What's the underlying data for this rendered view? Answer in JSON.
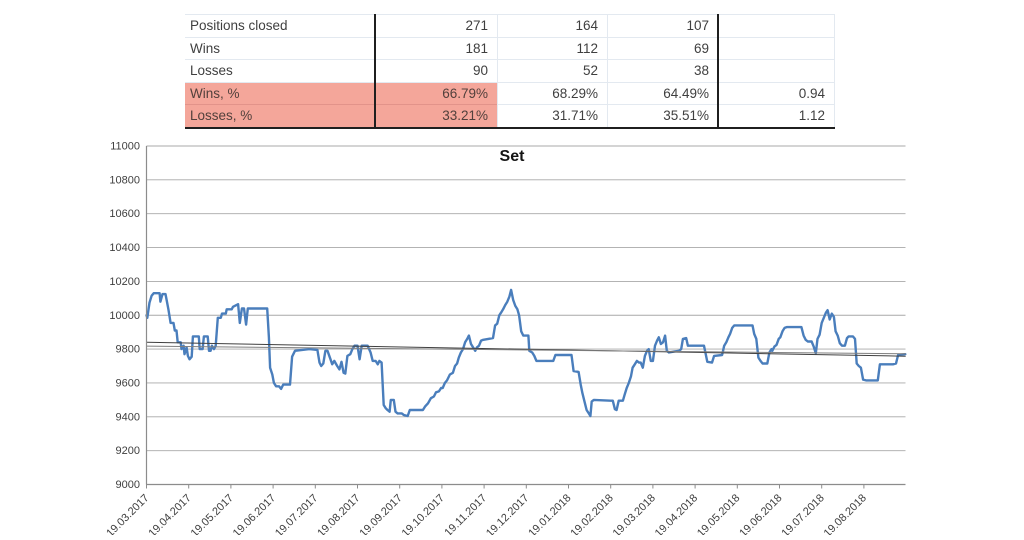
{
  "table": {
    "highlight_color": "#f4a69a",
    "columns": [
      "label",
      "value1",
      "value2",
      "value3",
      "value4"
    ],
    "rows": [
      {
        "label": "Positions closed",
        "values": [
          "271",
          "164",
          "107",
          ""
        ],
        "highlight": false
      },
      {
        "label": "Wins",
        "values": [
          "181",
          "112",
          "69",
          ""
        ],
        "highlight": false
      },
      {
        "label": "Losses",
        "values": [
          "90",
          "52",
          "38",
          ""
        ],
        "highlight": false
      },
      {
        "label": "Wins, %",
        "values": [
          "66.79%",
          "68.29%",
          "64.49%",
          "0.94"
        ],
        "highlight": true
      },
      {
        "label": "Losses, %",
        "values": [
          "33.21%",
          "31.71%",
          "35.51%",
          "1.12"
        ],
        "highlight": true
      }
    ]
  },
  "chart_data": {
    "type": "line",
    "title": "Set",
    "xlabel": "",
    "ylabel": "",
    "ylim": [
      9000,
      11000
    ],
    "grid": "horizontal",
    "legend": "none",
    "y_tick_labels": [
      "9000",
      "9200",
      "9400",
      "9600",
      "9800",
      "10000",
      "10200",
      "10400",
      "10600",
      "10800",
      "11000"
    ],
    "x_tick_labels": [
      "19.03.2017",
      "19.04.2017",
      "19.05.2017",
      "19.06.2017",
      "19.07.2017",
      "19.08.2017",
      "19.09.2017",
      "19.10.2017",
      "19.11.2017",
      "19.12.2017",
      "19.01.2018",
      "19.02.2018",
      "19.03.2018",
      "19.04.2018",
      "19.05.2018",
      "19.06.2018",
      "19.07.2018",
      "19.08.2018"
    ],
    "x_unit": "months since 19.03.2017",
    "colors": {
      "equity": "#4a7ebc",
      "trendline_dark": "#404040",
      "trendline_light": "#7f7f7f",
      "grid": "#a8a8a8",
      "axis": "#8c8c8c"
    },
    "series": [
      {
        "name": "equity",
        "color": "#4a7ebc",
        "width": 2.4,
        "points": [
          [
            0,
            10000
          ],
          [
            0.02,
            9985
          ],
          [
            0.07,
            10075
          ],
          [
            0.12,
            10115
          ],
          [
            0.17,
            10130
          ],
          [
            0.31,
            10130
          ],
          [
            0.33,
            10080
          ],
          [
            0.38,
            10125
          ],
          [
            0.45,
            10125
          ],
          [
            0.48,
            10085
          ],
          [
            0.52,
            10035
          ],
          [
            0.57,
            9955
          ],
          [
            0.64,
            9955
          ],
          [
            0.67,
            9910
          ],
          [
            0.71,
            9910
          ],
          [
            0.74,
            9840
          ],
          [
            0.81,
            9840
          ],
          [
            0.83,
            9800
          ],
          [
            0.88,
            9820
          ],
          [
            0.9,
            9770
          ],
          [
            0.95,
            9810
          ],
          [
            0.98,
            9760
          ],
          [
            1.02,
            9740
          ],
          [
            1.07,
            9755
          ],
          [
            1.1,
            9875
          ],
          [
            1.24,
            9875
          ],
          [
            1.26,
            9800
          ],
          [
            1.33,
            9800
          ],
          [
            1.36,
            9875
          ],
          [
            1.45,
            9875
          ],
          [
            1.48,
            9790
          ],
          [
            1.52,
            9790
          ],
          [
            1.55,
            9820
          ],
          [
            1.6,
            9800
          ],
          [
            1.64,
            9820
          ],
          [
            1.69,
            9985
          ],
          [
            1.76,
            9985
          ],
          [
            1.79,
            10010
          ],
          [
            1.88,
            10010
          ],
          [
            1.9,
            10035
          ],
          [
            2.02,
            10035
          ],
          [
            2.05,
            10050
          ],
          [
            2.17,
            10065
          ],
          [
            2.21,
            9955
          ],
          [
            2.26,
            10040
          ],
          [
            2.31,
            10040
          ],
          [
            2.36,
            9945
          ],
          [
            2.4,
            10040
          ],
          [
            2.86,
            10040
          ],
          [
            2.9,
            9870
          ],
          [
            2.93,
            9690
          ],
          [
            2.98,
            9650
          ],
          [
            3.02,
            9600
          ],
          [
            3.07,
            9580
          ],
          [
            3.14,
            9580
          ],
          [
            3.19,
            9565
          ],
          [
            3.24,
            9590
          ],
          [
            3.4,
            9590
          ],
          [
            3.45,
            9755
          ],
          [
            3.52,
            9790
          ],
          [
            3.69,
            9795
          ],
          [
            3.86,
            9800
          ],
          [
            4.05,
            9795
          ],
          [
            4.1,
            9720
          ],
          [
            4.14,
            9700
          ],
          [
            4.19,
            9715
          ],
          [
            4.24,
            9790
          ],
          [
            4.29,
            9790
          ],
          [
            4.36,
            9740
          ],
          [
            4.4,
            9710
          ],
          [
            4.45,
            9730
          ],
          [
            4.52,
            9700
          ],
          [
            4.57,
            9680
          ],
          [
            4.62,
            9725
          ],
          [
            4.67,
            9660
          ],
          [
            4.71,
            9655
          ],
          [
            4.76,
            9760
          ],
          [
            4.83,
            9770
          ],
          [
            4.88,
            9800
          ],
          [
            4.93,
            9820
          ],
          [
            5,
            9820
          ],
          [
            5.05,
            9740
          ],
          [
            5.1,
            9820
          ],
          [
            5.24,
            9820
          ],
          [
            5.31,
            9780
          ],
          [
            5.36,
            9730
          ],
          [
            5.43,
            9730
          ],
          [
            5.48,
            9710
          ],
          [
            5.52,
            9730
          ],
          [
            5.57,
            9720
          ],
          [
            5.62,
            9470
          ],
          [
            5.67,
            9450
          ],
          [
            5.71,
            9440
          ],
          [
            5.76,
            9430
          ],
          [
            5.79,
            9500
          ],
          [
            5.86,
            9500
          ],
          [
            5.9,
            9430
          ],
          [
            5.95,
            9420
          ],
          [
            6.05,
            9420
          ],
          [
            6.1,
            9410
          ],
          [
            6.19,
            9405
          ],
          [
            6.24,
            9440
          ],
          [
            6.55,
            9440
          ],
          [
            6.6,
            9460
          ],
          [
            6.67,
            9480
          ],
          [
            6.74,
            9510
          ],
          [
            6.81,
            9520
          ],
          [
            6.86,
            9545
          ],
          [
            6.93,
            9550
          ],
          [
            6.98,
            9570
          ],
          [
            7.02,
            9570
          ],
          [
            7.07,
            9600
          ],
          [
            7.12,
            9615
          ],
          [
            7.19,
            9650
          ],
          [
            7.26,
            9660
          ],
          [
            7.31,
            9700
          ],
          [
            7.36,
            9715
          ],
          [
            7.4,
            9750
          ],
          [
            7.45,
            9780
          ],
          [
            7.5,
            9800
          ],
          [
            7.55,
            9840
          ],
          [
            7.6,
            9860
          ],
          [
            7.64,
            9880
          ],
          [
            7.69,
            9830
          ],
          [
            7.74,
            9810
          ],
          [
            7.79,
            9790
          ],
          [
            7.83,
            9810
          ],
          [
            7.88,
            9820
          ],
          [
            7.93,
            9850
          ],
          [
            7.98,
            9855
          ],
          [
            8.1,
            9860
          ],
          [
            8.21,
            9865
          ],
          [
            8.26,
            9940
          ],
          [
            8.31,
            9950
          ],
          [
            8.36,
            10000
          ],
          [
            8.4,
            10015
          ],
          [
            8.45,
            10035
          ],
          [
            8.5,
            10060
          ],
          [
            8.55,
            10080
          ],
          [
            8.6,
            10110
          ],
          [
            8.64,
            10150
          ],
          [
            8.69,
            10090
          ],
          [
            8.74,
            10055
          ],
          [
            8.79,
            10035
          ],
          [
            8.83,
            10000
          ],
          [
            8.88,
            9905
          ],
          [
            8.93,
            9880
          ],
          [
            9.05,
            9880
          ],
          [
            9.07,
            9790
          ],
          [
            9.14,
            9780
          ],
          [
            9.19,
            9760
          ],
          [
            9.24,
            9730
          ],
          [
            9.36,
            9730
          ],
          [
            9.64,
            9730
          ],
          [
            9.69,
            9765
          ],
          [
            10.07,
            9765
          ],
          [
            10.12,
            9670
          ],
          [
            10.24,
            9665
          ],
          [
            10.29,
            9590
          ],
          [
            10.33,
            9540
          ],
          [
            10.38,
            9490
          ],
          [
            10.43,
            9440
          ],
          [
            10.48,
            9420
          ],
          [
            10.52,
            9405
          ],
          [
            10.55,
            9490
          ],
          [
            10.6,
            9500
          ],
          [
            11,
            9495
          ],
          [
            11.05,
            9495
          ],
          [
            11.1,
            9445
          ],
          [
            11.14,
            9440
          ],
          [
            11.19,
            9495
          ],
          [
            11.29,
            9495
          ],
          [
            11.33,
            9530
          ],
          [
            11.38,
            9570
          ],
          [
            11.43,
            9600
          ],
          [
            11.48,
            9640
          ],
          [
            11.52,
            9690
          ],
          [
            11.57,
            9710
          ],
          [
            11.62,
            9730
          ],
          [
            11.67,
            9720
          ],
          [
            11.71,
            9720
          ],
          [
            11.76,
            9690
          ],
          [
            11.81,
            9760
          ],
          [
            11.86,
            9790
          ],
          [
            11.9,
            9800
          ],
          [
            11.95,
            9730
          ],
          [
            12,
            9730
          ],
          [
            12.05,
            9820
          ],
          [
            12.1,
            9850
          ],
          [
            12.14,
            9870
          ],
          [
            12.19,
            9830
          ],
          [
            12.24,
            9840
          ],
          [
            12.29,
            9880
          ],
          [
            12.33,
            9790
          ],
          [
            12.38,
            9780
          ],
          [
            12.5,
            9785
          ],
          [
            12.62,
            9790
          ],
          [
            12.67,
            9800
          ],
          [
            12.71,
            9860
          ],
          [
            12.79,
            9865
          ],
          [
            12.83,
            9820
          ],
          [
            13.21,
            9820
          ],
          [
            13.29,
            9725
          ],
          [
            13.4,
            9720
          ],
          [
            13.45,
            9760
          ],
          [
            13.64,
            9765
          ],
          [
            13.69,
            9820
          ],
          [
            13.74,
            9840
          ],
          [
            13.79,
            9870
          ],
          [
            13.83,
            9890
          ],
          [
            13.88,
            9925
          ],
          [
            13.93,
            9940
          ],
          [
            14.36,
            9940
          ],
          [
            14.4,
            9890
          ],
          [
            14.45,
            9860
          ],
          [
            14.5,
            9750
          ],
          [
            14.55,
            9730
          ],
          [
            14.6,
            9715
          ],
          [
            14.71,
            9715
          ],
          [
            14.76,
            9780
          ],
          [
            14.81,
            9800
          ],
          [
            14.83,
            9790
          ],
          [
            14.88,
            9815
          ],
          [
            14.93,
            9825
          ],
          [
            14.98,
            9860
          ],
          [
            15.02,
            9870
          ],
          [
            15.07,
            9905
          ],
          [
            15.12,
            9925
          ],
          [
            15.17,
            9930
          ],
          [
            15.52,
            9930
          ],
          [
            15.57,
            9880
          ],
          [
            15.62,
            9855
          ],
          [
            15.67,
            9845
          ],
          [
            15.76,
            9845
          ],
          [
            15.81,
            9815
          ],
          [
            15.86,
            9775
          ],
          [
            15.9,
            9860
          ],
          [
            15.95,
            9885
          ],
          [
            16,
            9955
          ],
          [
            16.05,
            9985
          ],
          [
            16.1,
            10015
          ],
          [
            16.14,
            10030
          ],
          [
            16.19,
            9975
          ],
          [
            16.24,
            10010
          ],
          [
            16.29,
            9990
          ],
          [
            16.33,
            9905
          ],
          [
            16.38,
            9880
          ],
          [
            16.43,
            9835
          ],
          [
            16.48,
            9820
          ],
          [
            16.55,
            9820
          ],
          [
            16.6,
            9865
          ],
          [
            16.64,
            9875
          ],
          [
            16.74,
            9875
          ],
          [
            16.79,
            9860
          ],
          [
            16.83,
            9715
          ],
          [
            16.88,
            9700
          ],
          [
            16.93,
            9690
          ],
          [
            16.98,
            9620
          ],
          [
            17.05,
            9615
          ],
          [
            17.33,
            9615
          ],
          [
            17.38,
            9710
          ],
          [
            17.69,
            9710
          ],
          [
            17.76,
            9715
          ],
          [
            17.81,
            9765
          ],
          [
            17.98,
            9770
          ]
        ]
      },
      {
        "name": "trendline-dark",
        "color": "#404040",
        "width": 1,
        "points": [
          [
            0,
            9840
          ],
          [
            17.98,
            9758
          ]
        ]
      },
      {
        "name": "trendline-light",
        "color": "#7f7f7f",
        "width": 1,
        "points": [
          [
            0,
            9818
          ],
          [
            17.98,
            9772
          ]
        ]
      }
    ]
  }
}
